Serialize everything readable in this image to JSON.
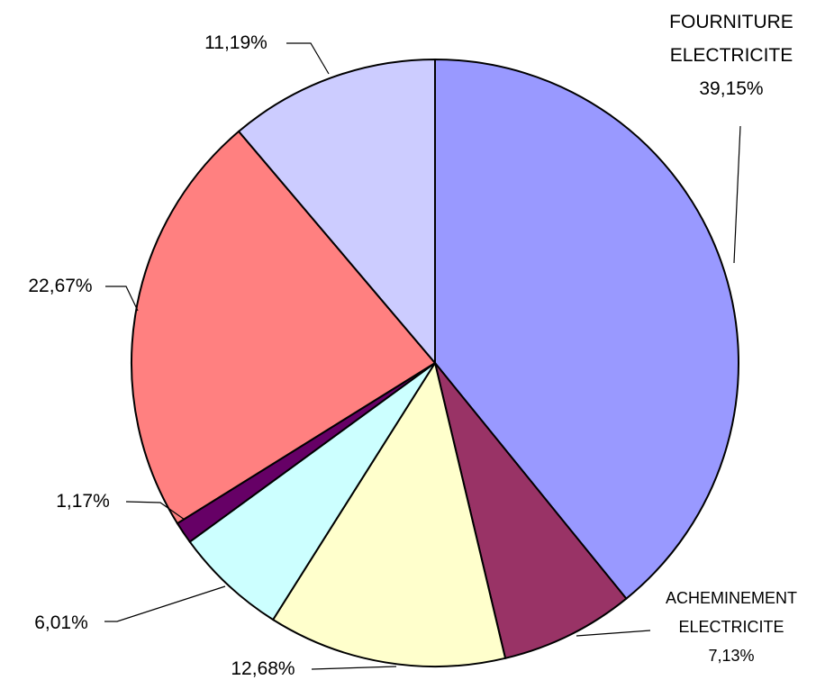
{
  "chart_data": {
    "type": "pie",
    "categories": [
      "FOURNITURE ELECTRICITE",
      "ACHEMINEMENT ELECTRICITE",
      null,
      null,
      null,
      null,
      null
    ],
    "values": [
      39.15,
      7.13,
      12.68,
      6.01,
      1.17,
      22.67,
      11.19
    ],
    "value_labels": [
      "39,15%",
      "7,13%",
      "12,68%",
      "6,01%",
      "1,17%",
      "22,67%",
      "11,19%"
    ],
    "colors": [
      "#9999ff",
      "#993366",
      "#ffffcc",
      "#ccffff",
      "#660066",
      "#ff8080",
      "#ccccff"
    ]
  }
}
